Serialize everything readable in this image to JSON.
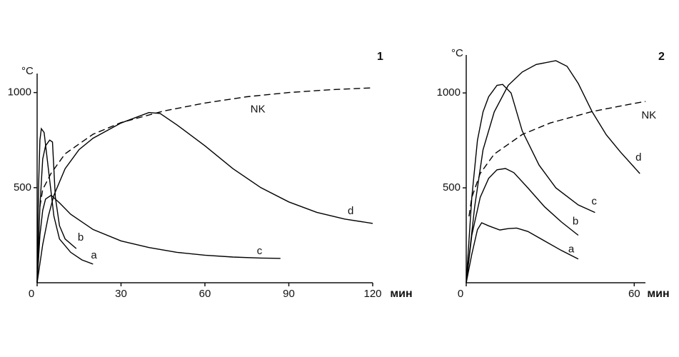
{
  "chart_data": [
    {
      "type": "line",
      "panel_label": "1",
      "y_label": "°C",
      "x_label": "мин",
      "xlim": [
        0,
        120
      ],
      "xticks": [
        0,
        30,
        60,
        90,
        120
      ],
      "ylim": [
        0,
        1100
      ],
      "yticks": [
        500,
        1000
      ],
      "series": [
        {
          "name": "a",
          "color": "#000000",
          "style": "solid",
          "x": [
            0,
            0.5,
            1,
            1.5,
            2.5,
            4,
            6,
            8,
            12,
            16,
            20
          ],
          "values": [
            0,
            500,
            750,
            810,
            790,
            600,
            350,
            230,
            160,
            120,
            98
          ]
        },
        {
          "name": "b",
          "color": "#000000",
          "style": "solid",
          "x": [
            0,
            1,
            2,
            3,
            4.5,
            5.5,
            6.5,
            8,
            10,
            14
          ],
          "values": [
            0,
            400,
            650,
            720,
            750,
            740,
            450,
            300,
            230,
            180
          ]
        },
        {
          "name": "c",
          "color": "#000000",
          "style": "solid",
          "x": [
            0,
            1,
            2,
            3,
            5,
            8,
            12,
            20,
            30,
            40,
            50,
            60,
            70,
            80,
            87
          ],
          "values": [
            0,
            250,
            380,
            440,
            460,
            420,
            360,
            280,
            220,
            185,
            160,
            145,
            135,
            130,
            128
          ]
        },
        {
          "name": "d",
          "color": "#000000",
          "style": "solid",
          "x": [
            0,
            2,
            4,
            6,
            10,
            15,
            20,
            30,
            40,
            44,
            50,
            60,
            70,
            80,
            90,
            100,
            110,
            120
          ],
          "values": [
            0,
            200,
            350,
            460,
            600,
            700,
            760,
            840,
            895,
            890,
            830,
            720,
            600,
            500,
            425,
            370,
            335,
            312
          ]
        },
        {
          "name": "NK",
          "color": "#000000",
          "style": "dashed",
          "x": [
            1,
            2,
            5,
            10,
            20,
            30,
            45,
            60,
            75,
            90,
            105,
            120
          ],
          "values": [
            400,
            490,
            576,
            678,
            781,
            842,
            902,
            945,
            978,
            1000,
            1015,
            1025
          ]
        }
      ]
    },
    {
      "type": "line",
      "panel_label": "2",
      "y_label": "°C",
      "x_label": "мин",
      "xlim": [
        0,
        64
      ],
      "xticks": [
        0,
        60
      ],
      "ylim": [
        0,
        1200
      ],
      "yticks": [
        500,
        1000
      ],
      "series": [
        {
          "name": "a",
          "color": "#000000",
          "style": "solid",
          "x": [
            0,
            2,
            4,
            5.5,
            8,
            12,
            15,
            18,
            22,
            28,
            34,
            40
          ],
          "values": [
            0,
            150,
            280,
            316,
            300,
            278,
            285,
            288,
            270,
            220,
            170,
            125
          ]
        },
        {
          "name": "b",
          "color": "#000000",
          "style": "solid",
          "x": [
            0,
            2,
            5,
            8,
            11,
            14,
            17,
            22,
            28,
            34,
            40
          ],
          "values": [
            0,
            250,
            450,
            550,
            595,
            602,
            580,
            500,
            400,
            320,
            250
          ]
        },
        {
          "name": "c",
          "color": "#000000",
          "style": "solid",
          "x": [
            0,
            2,
            4,
            6,
            8,
            11,
            13,
            16,
            20,
            26,
            32,
            40,
            46
          ],
          "values": [
            0,
            450,
            750,
            900,
            980,
            1040,
            1045,
            1000,
            800,
            620,
            500,
            410,
            370
          ]
        },
        {
          "name": "d",
          "color": "#000000",
          "style": "solid",
          "x": [
            0,
            3,
            6,
            10,
            15,
            20,
            25,
            32,
            36,
            40,
            45,
            50,
            55,
            62
          ],
          "values": [
            0,
            400,
            700,
            900,
            1040,
            1110,
            1150,
            1170,
            1140,
            1050,
            900,
            780,
            690,
            575
          ]
        },
        {
          "name": "NK",
          "color": "#000000",
          "style": "dashed",
          "x": [
            1,
            2,
            5,
            10,
            20,
            30,
            45,
            60,
            64
          ],
          "values": [
            350,
            450,
            576,
            678,
            781,
            842,
            902,
            945,
            955
          ]
        }
      ]
    }
  ]
}
